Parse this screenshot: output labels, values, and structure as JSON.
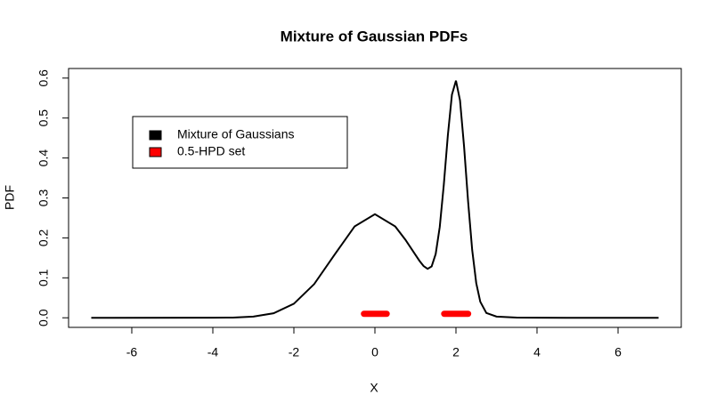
{
  "chart_data": {
    "type": "line",
    "title": "Mixture of Gaussian PDFs",
    "x_label": "X",
    "y_label": "PDF",
    "x": [
      -7,
      -4,
      -3.5,
      -3,
      -2.5,
      -2,
      -1.5,
      -1,
      -0.5,
      0,
      0.5,
      0.75,
      1,
      1.1,
      1.2,
      1.3,
      1.4,
      1.5,
      1.6,
      1.7,
      1.8,
      1.9,
      2,
      2.1,
      2.2,
      2.3,
      2.4,
      2.5,
      2.6,
      2.75,
      3,
      3.5,
      4,
      7
    ],
    "series": [
      {
        "name": "Mixture of Gaussians",
        "color": "#000000",
        "values": [
          0,
          0.0001,
          0.0006,
          0.0029,
          0.0114,
          0.0351,
          0.0842,
          0.1573,
          0.2288,
          0.2593,
          0.2288,
          0.1957,
          0.1575,
          0.1425,
          0.1296,
          0.1225,
          0.1287,
          0.1598,
          0.2274,
          0.333,
          0.4568,
          0.5583,
          0.5936,
          0.5442,
          0.4286,
          0.2903,
          0.1699,
          0.087,
          0.0402,
          0.0121,
          0.0031,
          0.0006,
          0.0001,
          0
        ]
      }
    ],
    "hpd": {
      "name": "0.5-HPD set",
      "color": "#ff0000",
      "y": 0.01,
      "intervals": [
        [
          -0.27,
          0.29
        ],
        [
          1.71,
          2.3
        ]
      ]
    },
    "xlim": [
      -7.56,
      7.56
    ],
    "ylim": [
      -0.024,
      0.624
    ],
    "xticks": [
      -6,
      -4,
      -2,
      0,
      2,
      4,
      6
    ],
    "yticks": [
      {
        "value": 0,
        "label": "0.0"
      },
      0.1,
      0.2,
      0.3,
      0.4,
      0.5,
      0.6
    ],
    "legend": "topleft"
  }
}
